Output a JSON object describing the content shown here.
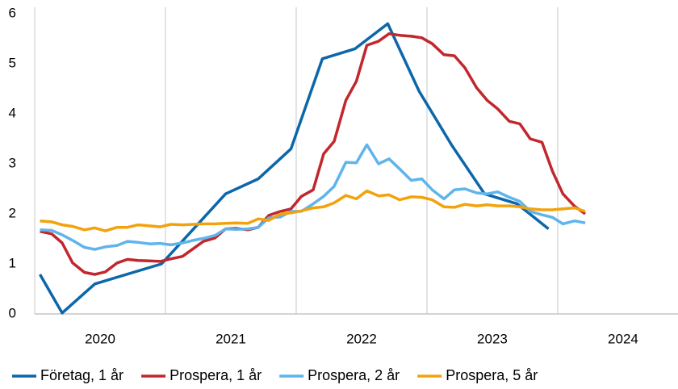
{
  "chart_data": {
    "type": "line",
    "x": [
      2020.04,
      2020.13,
      2020.21,
      2020.29,
      2020.38,
      2020.46,
      2020.54,
      2020.63,
      2020.71,
      2020.79,
      2020.88,
      2020.96,
      2021.04,
      2021.13,
      2021.21,
      2021.29,
      2021.38,
      2021.46,
      2021.54,
      2021.63,
      2021.71,
      2021.79,
      2021.88,
      2021.96,
      2022.04,
      2022.13,
      2022.21,
      2022.29,
      2022.38,
      2022.46,
      2022.54,
      2022.63,
      2022.71,
      2022.79,
      2022.88,
      2022.96,
      2023.04,
      2023.13,
      2023.21,
      2023.29,
      2023.38,
      2023.46,
      2023.54,
      2023.63,
      2023.71,
      2023.79,
      2023.88,
      2023.96,
      2024.04,
      2024.13,
      2024.21
    ],
    "series": [
      {
        "name": "Företag, 1 år",
        "color": "#0b67a9",
        "x": [
          2020.04,
          2020.21,
          2020.46,
          2020.97,
          2021.46,
          2021.71,
          2021.96,
          2022.2,
          2022.45,
          2022.7,
          2022.94,
          2023.19,
          2023.44,
          2023.69,
          2023.93
        ],
        "values": [
          0.79,
          0.02,
          0.6,
          1.0,
          2.4,
          2.7,
          3.3,
          5.1,
          5.3,
          5.8,
          4.45,
          3.37,
          2.4,
          2.2,
          1.7
        ]
      },
      {
        "name": "Prospera, 1 år",
        "color": "#c1272d",
        "values": [
          1.65,
          1.6,
          1.42,
          1.02,
          0.83,
          0.79,
          0.84,
          1.02,
          1.09,
          1.07,
          1.06,
          1.05,
          1.1,
          1.15,
          1.3,
          1.45,
          1.52,
          1.7,
          1.71,
          1.68,
          1.73,
          1.97,
          2.05,
          2.1,
          2.35,
          2.48,
          3.2,
          3.45,
          4.27,
          4.65,
          5.37,
          5.45,
          5.6,
          5.57,
          5.55,
          5.52,
          5.4,
          5.18,
          5.16,
          4.92,
          4.52,
          4.27,
          4.1,
          3.85,
          3.8,
          3.5,
          3.43,
          2.85,
          2.4,
          2.15,
          2.0
        ]
      },
      {
        "name": "Prospera, 2 år",
        "color": "#5fb4ec",
        "values": [
          1.68,
          1.67,
          1.58,
          1.47,
          1.33,
          1.29,
          1.34,
          1.37,
          1.45,
          1.43,
          1.4,
          1.41,
          1.38,
          1.42,
          1.47,
          1.51,
          1.57,
          1.7,
          1.69,
          1.7,
          1.73,
          1.92,
          1.94,
          2.05,
          2.05,
          2.2,
          2.35,
          2.55,
          3.03,
          3.02,
          3.38,
          3.0,
          3.1,
          2.9,
          2.67,
          2.7,
          2.48,
          2.3,
          2.48,
          2.5,
          2.42,
          2.4,
          2.44,
          2.33,
          2.25,
          2.05,
          1.98,
          1.93,
          1.8,
          1.86,
          1.82
        ]
      },
      {
        "name": "Prospera, 5 år",
        "color": "#f2a20c",
        "values": [
          1.86,
          1.84,
          1.78,
          1.75,
          1.68,
          1.72,
          1.66,
          1.73,
          1.73,
          1.78,
          1.76,
          1.74,
          1.79,
          1.78,
          1.79,
          1.8,
          1.8,
          1.81,
          1.82,
          1.81,
          1.9,
          1.87,
          2.0,
          2.02,
          2.06,
          2.12,
          2.14,
          2.22,
          2.37,
          2.3,
          2.46,
          2.36,
          2.38,
          2.28,
          2.34,
          2.33,
          2.28,
          2.14,
          2.13,
          2.19,
          2.16,
          2.18,
          2.16,
          2.16,
          2.14,
          2.1,
          2.08,
          2.08,
          2.1,
          2.12,
          2.05
        ]
      }
    ],
    "xlim": [
      2020,
      2024.92
    ],
    "xticks": [
      {
        "value": 2020.5,
        "label": "2020"
      },
      {
        "value": 2021.5,
        "label": "2021"
      },
      {
        "value": 2022.5,
        "label": "2022"
      },
      {
        "value": 2023.5,
        "label": "2023"
      },
      {
        "value": 2024.5,
        "label": "2024"
      }
    ],
    "xgrid": [
      2021,
      2022,
      2023,
      2024
    ],
    "ylim": [
      0,
      6
    ],
    "yticks": [
      0,
      1,
      2,
      3,
      4,
      5,
      6
    ],
    "legend": "bottom"
  }
}
